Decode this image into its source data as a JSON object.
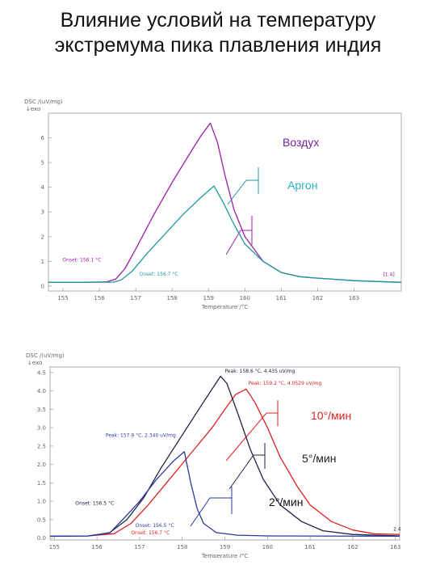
{
  "slide": {
    "title_line1": "Влияние условий на температуру",
    "title_line2": "экстремума пика плавления индия"
  },
  "chart_data": [
    {
      "type": "line",
      "ylabel": "DSC /(uV/mg)",
      "exo_label": "↓exo",
      "xlabel": "Temperature /°C",
      "xlim": [
        154.6,
        164.3
      ],
      "ylim": [
        -0.2,
        7.0
      ],
      "x_ticks": [
        155,
        156,
        157,
        158,
        159,
        160,
        161,
        162,
        163
      ],
      "y_ticks": [
        0,
        1,
        2,
        3,
        4,
        5,
        6
      ],
      "series": [
        {
          "name": "Воздух",
          "color": "#9b1fa8",
          "label_color": "#7a1fa0",
          "points": [
            [
              154.6,
              0.15
            ],
            [
              155.5,
              0.15
            ],
            [
              156.2,
              0.17
            ],
            [
              156.45,
              0.28
            ],
            [
              156.7,
              0.7
            ],
            [
              157.0,
              1.5
            ],
            [
              157.5,
              2.9
            ],
            [
              158.0,
              4.2
            ],
            [
              158.5,
              5.4
            ],
            [
              158.8,
              6.1
            ],
            [
              159.05,
              6.6
            ],
            [
              159.25,
              5.8
            ],
            [
              159.45,
              4.5
            ],
            [
              159.7,
              3.1
            ],
            [
              160.0,
              2.0
            ],
            [
              160.5,
              1.0
            ],
            [
              161.0,
              0.55
            ],
            [
              161.5,
              0.38
            ],
            [
              162.0,
              0.32
            ],
            [
              163.0,
              0.22
            ],
            [
              164.3,
              0.15
            ]
          ],
          "annotations": [
            {
              "text": "Onset: 156.1 °C",
              "x": 156.05,
              "y": 1.0,
              "anchor": "end"
            },
            {
              "text": "[1.4]",
              "x": 163.8,
              "y": 0.4,
              "anchor": "start"
            }
          ]
        },
        {
          "name": "Аргон",
          "color": "#1e9a9a",
          "label_color": "#2ab0c0",
          "points": [
            [
              154.6,
              0.15
            ],
            [
              155.5,
              0.15
            ],
            [
              156.4,
              0.16
            ],
            [
              156.6,
              0.25
            ],
            [
              156.9,
              0.6
            ],
            [
              157.3,
              1.3
            ],
            [
              157.8,
              2.1
            ],
            [
              158.3,
              2.9
            ],
            [
              158.8,
              3.6
            ],
            [
              159.15,
              4.05
            ],
            [
              159.4,
              3.4
            ],
            [
              159.7,
              2.5
            ],
            [
              160.0,
              1.7
            ],
            [
              160.5,
              1.0
            ],
            [
              161.0,
              0.55
            ],
            [
              161.5,
              0.38
            ],
            [
              162.0,
              0.32
            ],
            [
              163.0,
              0.22
            ],
            [
              164.3,
              0.15
            ]
          ],
          "annotations": [
            {
              "text": "Onset: 156.7 °C",
              "x": 157.1,
              "y": 0.42,
              "anchor": "start"
            }
          ]
        }
      ]
    },
    {
      "type": "line",
      "ylabel": "DSC /(uV/mg)",
      "exo_label": "↓exo",
      "xlabel": "Temperature /°C",
      "xlim": [
        154.9,
        163.1
      ],
      "ylim": [
        -0.05,
        4.65
      ],
      "x_ticks": [
        155,
        156,
        157,
        158,
        159,
        160,
        161,
        162,
        163
      ],
      "y_ticks": [
        0.0,
        0.5,
        1.0,
        1.5,
        2.0,
        2.5,
        3.0,
        3.5,
        4.0,
        4.5
      ],
      "series": [
        {
          "name": "10°/мин",
          "color": "#dd2222",
          "label_color": "#dd2222",
          "points": [
            [
              154.9,
              0.05
            ],
            [
              155.8,
              0.06
            ],
            [
              156.4,
              0.12
            ],
            [
              156.8,
              0.4
            ],
            [
              157.2,
              0.9
            ],
            [
              157.7,
              1.6
            ],
            [
              158.2,
              2.3
            ],
            [
              158.7,
              3.0
            ],
            [
              159.0,
              3.5
            ],
            [
              159.25,
              3.9
            ],
            [
              159.5,
              4.05
            ],
            [
              159.7,
              3.7
            ],
            [
              160.0,
              3.0
            ],
            [
              160.3,
              2.2
            ],
            [
              160.7,
              1.4
            ],
            [
              161.0,
              0.9
            ],
            [
              161.5,
              0.45
            ],
            [
              162.0,
              0.22
            ],
            [
              162.5,
              0.12
            ],
            [
              163.1,
              0.1
            ]
          ],
          "annotations": [
            {
              "text": "Peak: 159.2 °C, 4.0529 uV/mg",
              "x": 159.55,
              "y": 4.17,
              "anchor": "start"
            },
            {
              "text": "Onset: 156.7 °C",
              "x": 156.8,
              "y": 0.1,
              "anchor": "start"
            }
          ]
        },
        {
          "name": "5°/мин",
          "color": "#222244",
          "label_color": "#222222",
          "points": [
            [
              154.9,
              0.05
            ],
            [
              155.8,
              0.06
            ],
            [
              156.3,
              0.15
            ],
            [
              156.7,
              0.5
            ],
            [
              157.1,
              1.1
            ],
            [
              157.5,
              1.9
            ],
            [
              158.0,
              2.8
            ],
            [
              158.5,
              3.7
            ],
            [
              158.9,
              4.4
            ],
            [
              159.05,
              4.2
            ],
            [
              159.3,
              3.4
            ],
            [
              159.6,
              2.4
            ],
            [
              159.9,
              1.6
            ],
            [
              160.3,
              0.9
            ],
            [
              160.8,
              0.45
            ],
            [
              161.3,
              0.2
            ],
            [
              162.0,
              0.1
            ],
            [
              163.1,
              0.06
            ]
          ],
          "annotations": [
            {
              "text": "Peak: 158.6 °C, 4.435 uV/mg",
              "x": 159.0,
              "y": 4.5,
              "anchor": "start"
            },
            {
              "text": "Onset: 156.5 °C",
              "x": 156.4,
              "y": 0.9,
              "anchor": "end"
            },
            {
              "text": "2.4",
              "x": 162.95,
              "y": 0.2,
              "anchor": "start"
            }
          ]
        },
        {
          "name": "2°/мин",
          "color": "#2a3a9a",
          "label_color": "#111111",
          "points": [
            [
              154.9,
              0.05
            ],
            [
              155.8,
              0.06
            ],
            [
              156.3,
              0.14
            ],
            [
              156.6,
              0.5
            ],
            [
              157.0,
              1.0
            ],
            [
              157.4,
              1.6
            ],
            [
              157.8,
              2.1
            ],
            [
              158.05,
              2.35
            ],
            [
              158.2,
              1.5
            ],
            [
              158.35,
              0.8
            ],
            [
              158.5,
              0.4
            ],
            [
              158.8,
              0.15
            ],
            [
              159.3,
              0.08
            ],
            [
              160.0,
              0.06
            ],
            [
              163.1,
              0.05
            ]
          ],
          "annotations": [
            {
              "text": "Peak: 157.9 °C, 2.340 uV/mg",
              "x": 157.85,
              "y": 2.75,
              "anchor": "end"
            },
            {
              "text": "Onset: 156.5 °C",
              "x": 156.9,
              "y": 0.3,
              "anchor": "start"
            }
          ]
        }
      ]
    }
  ]
}
